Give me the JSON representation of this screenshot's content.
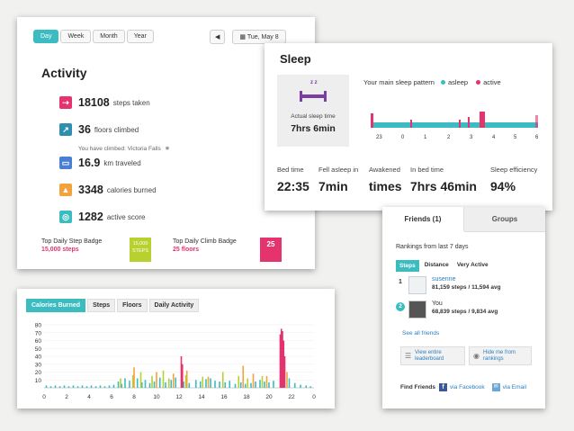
{
  "activity": {
    "periods": [
      "Day",
      "Week",
      "Month",
      "Year"
    ],
    "date": "Tue, May 8",
    "title": "Activity",
    "steps": {
      "value": "18108",
      "unit": "steps taken"
    },
    "floors": {
      "value": "36",
      "unit": "floors climbed",
      "note": "You have climbed: Victoria Falls"
    },
    "distance": {
      "value": "16.9",
      "unit": "km traveled"
    },
    "calories": {
      "value": "3348",
      "unit": "calories burned"
    },
    "score": {
      "value": "1282",
      "unit": "active score"
    },
    "step_badge": {
      "title": "Top Daily Step Badge",
      "value": "15,000 steps",
      "icon_top": "15,000",
      "icon_bottom": "STEPS"
    },
    "climb_badge": {
      "title": "Top Daily Climb Badge",
      "value": "25 floors",
      "icon": "25"
    }
  },
  "sleep": {
    "title": "Sleep",
    "actual_label": "Actual sleep time",
    "actual_value": "7hrs 6min",
    "pattern_label": "Your main sleep pattern",
    "legend_asleep": "asleep",
    "legend_active": "active",
    "hours": [
      "23",
      "0",
      "1",
      "2",
      "3",
      "4",
      "5",
      "6"
    ],
    "bed_time": {
      "label": "Bed time",
      "value": "22:35"
    },
    "fell_asleep": {
      "label": "Fell asleep in",
      "value": "7min"
    },
    "awakened": {
      "label": "Awakened",
      "value": "times"
    },
    "in_bed": {
      "label": "In bed time",
      "value": "7hrs 46min"
    },
    "efficiency": {
      "label": "Sleep efficiency",
      "value": "94%"
    }
  },
  "friends": {
    "tab_friends": "Friends (1)",
    "tab_groups": "Groups",
    "rankings": "Rankings from last 7 days",
    "filters": [
      "Steps",
      "Distance",
      "Very Active"
    ],
    "entries": [
      {
        "rank": "1",
        "name": "susenne",
        "stats": "81,159 steps / 11,594 avg"
      },
      {
        "rank": "2",
        "name": "You",
        "stats": "68,839 steps / 9,834 avg"
      }
    ],
    "see_all": "See all friends",
    "leaderboard": "View entire leaderboard",
    "hide": "Hide me from rankings",
    "find": "Find Friends",
    "via_facebook": "via Facebook",
    "via_email": "via Email"
  },
  "calories_chart": {
    "tabs": [
      "Calories Burned",
      "Steps",
      "Floors",
      "Daily Activity"
    ]
  },
  "colors": {
    "teal": "#3bbcc0",
    "pink": "#e5336e",
    "green": "#b8d12e",
    "orange": "#f3a33d",
    "blue": "#2b7fc0"
  },
  "chart_data": {
    "type": "bar",
    "title": "",
    "xlabel": "",
    "ylabel": "",
    "xlim": [
      0,
      24
    ],
    "ylim": [
      0,
      80
    ],
    "x_ticks": [
      "0",
      "2",
      "4",
      "6",
      "8",
      "10",
      "12",
      "14",
      "16",
      "18",
      "20",
      "22",
      "0"
    ],
    "y_ticks": [
      "10",
      "20",
      "30",
      "40",
      "50",
      "60",
      "70",
      "80"
    ],
    "series": [
      {
        "color": "teal",
        "values": [
          [
            0.2,
            3
          ],
          [
            0.6,
            2
          ],
          [
            1.0,
            3
          ],
          [
            1.4,
            2
          ],
          [
            1.8,
            3
          ],
          [
            2.2,
            2
          ],
          [
            2.6,
            3
          ],
          [
            3.0,
            2
          ],
          [
            3.4,
            3
          ],
          [
            3.8,
            2
          ],
          [
            4.2,
            3
          ],
          [
            4.6,
            2
          ],
          [
            5.0,
            3
          ],
          [
            5.4,
            2
          ],
          [
            5.8,
            3
          ],
          [
            6.2,
            4
          ],
          [
            6.6,
            8
          ],
          [
            6.9,
            5
          ],
          [
            7.2,
            12
          ],
          [
            7.6,
            9
          ],
          [
            8.3,
            12
          ],
          [
            8.7,
            7
          ],
          [
            9.0,
            10
          ],
          [
            9.4,
            6
          ],
          [
            9.8,
            8
          ],
          [
            10.3,
            13
          ],
          [
            10.8,
            7
          ],
          [
            11.3,
            10
          ],
          [
            11.7,
            13
          ],
          [
            12.4,
            8
          ],
          [
            12.9,
            6
          ],
          [
            13.5,
            10
          ],
          [
            13.9,
            8
          ],
          [
            14.4,
            11
          ],
          [
            14.8,
            12
          ],
          [
            15.2,
            9
          ],
          [
            15.6,
            8
          ],
          [
            16.1,
            7
          ],
          [
            16.5,
            9
          ],
          [
            17.0,
            5
          ],
          [
            17.5,
            7
          ],
          [
            17.9,
            5
          ],
          [
            18.4,
            6
          ],
          [
            18.8,
            8
          ],
          [
            19.2,
            10
          ],
          [
            19.6,
            8
          ],
          [
            20.0,
            7
          ],
          [
            20.4,
            9
          ],
          [
            21.8,
            12
          ],
          [
            22.3,
            6
          ],
          [
            22.8,
            4
          ],
          [
            23.3,
            3
          ],
          [
            23.7,
            2
          ]
        ]
      },
      {
        "color": "green",
        "values": [
          [
            6.8,
            12
          ],
          [
            7.9,
            16
          ],
          [
            8.6,
            20
          ],
          [
            9.6,
            15
          ],
          [
            10.6,
            22
          ],
          [
            11.1,
            12
          ],
          [
            12.6,
            16
          ],
          [
            14.1,
            14
          ],
          [
            15.9,
            20
          ],
          [
            17.3,
            15
          ],
          [
            18.1,
            12
          ],
          [
            19.4,
            15
          ]
        ]
      },
      {
        "color": "orange",
        "values": [
          [
            8.0,
            26
          ],
          [
            10.0,
            20
          ],
          [
            11.5,
            18
          ],
          [
            12.7,
            22
          ],
          [
            14.6,
            14
          ],
          [
            17.7,
            28
          ],
          [
            18.6,
            18
          ],
          [
            19.8,
            15
          ],
          [
            21.6,
            20
          ]
        ]
      },
      {
        "color": "pink",
        "values": [
          [
            12.2,
            40
          ],
          [
            12.3,
            30
          ],
          [
            21.0,
            68
          ],
          [
            21.1,
            75
          ],
          [
            21.2,
            72
          ],
          [
            21.3,
            60
          ],
          [
            21.4,
            40
          ]
        ]
      }
    ]
  }
}
